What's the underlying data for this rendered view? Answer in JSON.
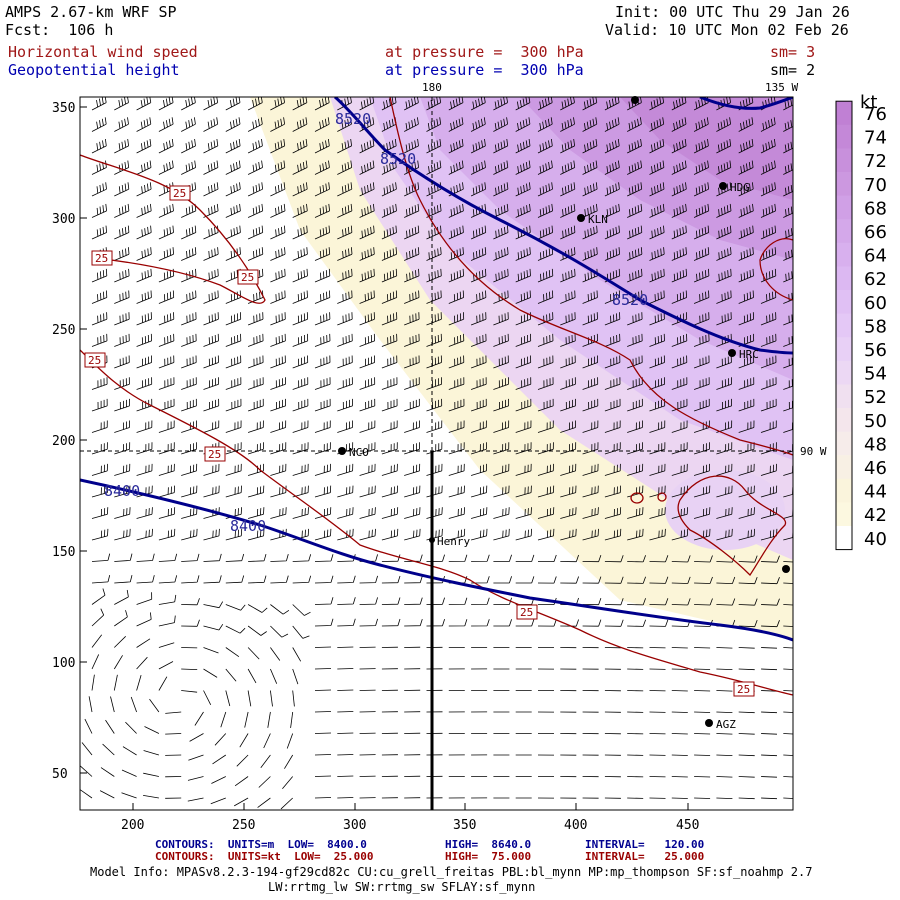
{
  "header": {
    "model": "AMPS 2.67-km WRF SP",
    "forecast": "Fcst:  106 h",
    "init": "Init: 00 UTC Thu 29 Jan 26",
    "valid": "Valid: 10 UTC Mon 02 Feb 26",
    "field1": "Horizontal wind speed",
    "field1_level": "at pressure =  300 hPa",
    "field1_sm": "sm= 3",
    "field2": "Geopotential height",
    "field2_level": "at pressure =  300 hPa",
    "field2_sm": "sm= 2"
  },
  "map_labels": {
    "lon_180": "180",
    "lon_135w": "135 W",
    "lon_90w": "90 W",
    "stations": [
      "HDG",
      "KLN",
      "HRC",
      "NCO",
      "Henry",
      "AGZ"
    ]
  },
  "axes": {
    "x_ticks": [
      "200",
      "250",
      "300",
      "350",
      "400",
      "450"
    ],
    "y_ticks": [
      "350",
      "300",
      "250",
      "200",
      "150",
      "100",
      "50"
    ]
  },
  "colorbar": {
    "unit": "kt",
    "levels": [
      "76",
      "74",
      "72",
      "70",
      "68",
      "66",
      "64",
      "62",
      "60",
      "58",
      "56",
      "54",
      "52",
      "50",
      "48",
      "46",
      "44",
      "42",
      "40"
    ],
    "colors": [
      "#c080d4",
      "#c488d8",
      "#c890dc",
      "#cc98e0",
      "#d0a0e6",
      "#d4a8ea",
      "#d8b0ee",
      "#dcb8f2",
      "#e0c0f4",
      "#e4c8f6",
      "#e8d0f6",
      "#ecd8f4",
      "#f0e0f0",
      "#f4e6ec",
      "#f6ecea",
      "#f8f0e4",
      "#faf4dc",
      "#fcf8e0",
      "#ffffff"
    ]
  },
  "contour_labels": {
    "height": [
      "8520",
      "8520",
      "8520",
      "8400",
      "8400"
    ],
    "wind": [
      "25",
      "25",
      "25",
      "25",
      "25",
      "25",
      "25"
    ]
  },
  "footer": {
    "line1_label": "CONTOURS:  UNITS=m  LOW=  8400.0",
    "line1_high": "HIGH=  8640.0",
    "line1_interval": "INTERVAL=   120.00",
    "line2_label": "CONTOURS:  UNITS=kt  LOW=  25.000",
    "line2_high": "HIGH=  75.000",
    "line2_interval": "INTERVAL=   25.000",
    "model_info": "Model Info: MPASv8.2.3-194-gf29cd82c CU:cu_grell_freitas PBL:bl_mynn MP:mp_thompson SF:sf_noahmp 2.7",
    "model_info2": "LW:rrtmg_lw SW:rrtmg_sw SFLAY:sf_mynn"
  }
}
